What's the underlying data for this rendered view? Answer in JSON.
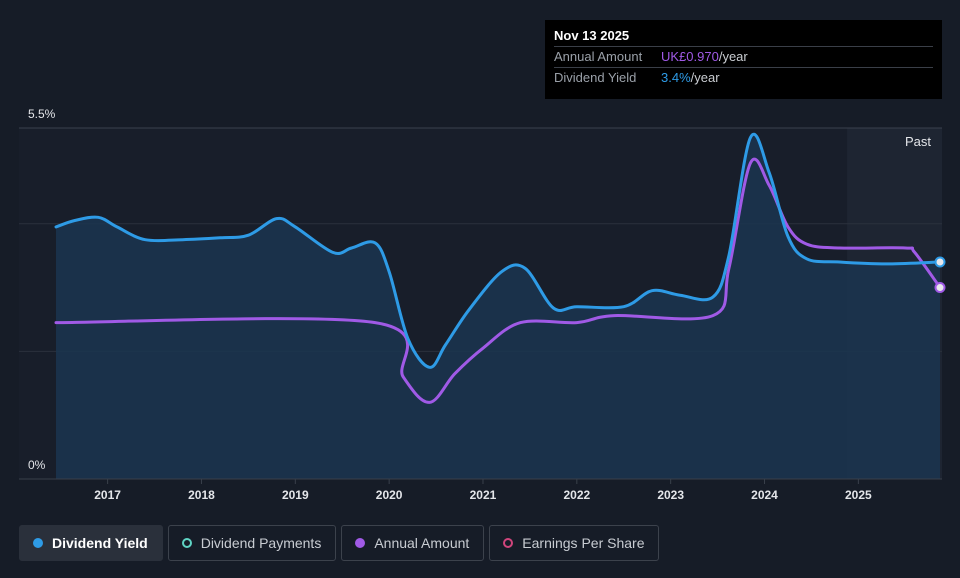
{
  "tooltip": {
    "date": "Nov 13 2025",
    "annual_label": "Annual Amount",
    "annual_value": "UK£0.970",
    "annual_unit": "/year",
    "yield_label": "Dividend Yield",
    "yield_value": "3.4%",
    "yield_unit": "/year"
  },
  "past_label": "Past",
  "legend": [
    {
      "label": "Dividend Yield",
      "color": "#2e9be6",
      "style": "filled",
      "active": true
    },
    {
      "label": "Dividend Payments",
      "color": "#5fd4c4",
      "style": "outline",
      "active": false
    },
    {
      "label": "Annual Amount",
      "color": "#a05ae6",
      "style": "filled",
      "active": false
    },
    {
      "label": "Earnings Per Share",
      "color": "#d0457c",
      "style": "outline",
      "active": false
    }
  ],
  "colors": {
    "yield": "#2e9be6",
    "annual": "#a05ae6",
    "background": "#161c27",
    "plot_area": "#181e2a"
  },
  "chart_data": {
    "type": "line",
    "y_tick_labels": [
      "5.5%",
      "0%"
    ],
    "ylim": [
      0,
      5.5
    ],
    "xlim": [
      2016.45,
      2025.87
    ],
    "x_ticks": [
      2017,
      2018,
      2019,
      2020,
      2021,
      2022,
      2023,
      2024,
      2025
    ],
    "x_tick_labels": [
      "2017",
      "2018",
      "2019",
      "2020",
      "2021",
      "2022",
      "2023",
      "2024",
      "2025"
    ],
    "past_region_start": 2024.88,
    "series": [
      {
        "name": "Dividend Yield",
        "x": [
          2016.45,
          2016.65,
          2016.9,
          2017.1,
          2017.4,
          2017.8,
          2018.2,
          2018.5,
          2018.8,
          2019.0,
          2019.4,
          2019.6,
          2019.85,
          2020.0,
          2020.2,
          2020.43,
          2020.6,
          2020.85,
          2021.2,
          2021.45,
          2021.75,
          2022.0,
          2022.5,
          2022.8,
          2023.1,
          2023.45,
          2023.62,
          2023.85,
          2024.05,
          2024.25,
          2024.45,
          2024.8,
          2025.3,
          2025.87
        ],
        "values": [
          3.95,
          4.05,
          4.1,
          3.95,
          3.75,
          3.75,
          3.78,
          3.82,
          4.08,
          3.95,
          3.55,
          3.62,
          3.7,
          3.25,
          2.2,
          1.75,
          2.1,
          2.65,
          3.25,
          3.3,
          2.68,
          2.7,
          2.7,
          2.95,
          2.88,
          2.85,
          3.5,
          5.35,
          4.8,
          3.8,
          3.45,
          3.4,
          3.37,
          3.4
        ]
      },
      {
        "name": "Annual Amount",
        "x": [
          2016.45,
          2019.85,
          2020.15,
          2020.43,
          2020.7,
          2021.0,
          2021.4,
          2022.0,
          2022.4,
          2023.45,
          2023.62,
          2023.85,
          2024.05,
          2024.25,
          2024.45,
          2024.8,
          2025.5,
          2025.6,
          2025.87
        ],
        "values": [
          2.45,
          2.45,
          1.6,
          1.2,
          1.65,
          2.05,
          2.45,
          2.45,
          2.56,
          2.56,
          3.3,
          4.95,
          4.6,
          3.95,
          3.68,
          3.62,
          3.62,
          3.55,
          3.0
        ]
      }
    ]
  }
}
